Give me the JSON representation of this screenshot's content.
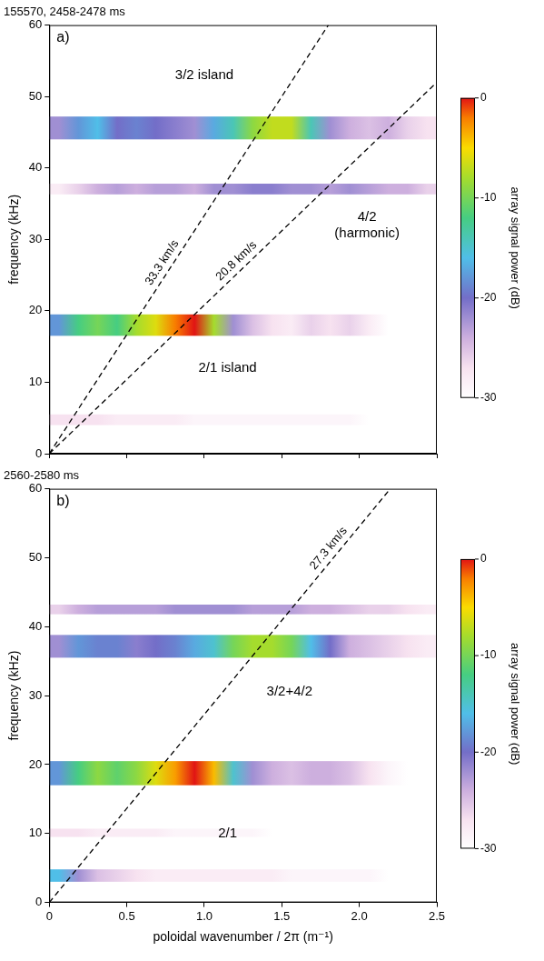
{
  "chart_data": [
    {
      "type": "heatmap",
      "title": "155570, 2458-2478 ms",
      "panel_label": "a)",
      "y_label": "frequency (kHz)",
      "xlim": [
        0,
        2.5
      ],
      "ylim": [
        0,
        60
      ],
      "xticks": [
        0,
        0.5,
        {
          "value": 1,
          "label": "1.0"
        },
        1.5,
        {
          "value": 2,
          "label": "2.0"
        },
        2.5
      ],
      "yticks": [
        0,
        10,
        20,
        30,
        40,
        50,
        60
      ],
      "tick_labels": "y",
      "grid": false,
      "x_edges": [
        0,
        0.125,
        0.25,
        0.375,
        0.5,
        0.625,
        0.75,
        0.875,
        1,
        1.125,
        1.25,
        1.375,
        1.5,
        1.625,
        1.75,
        1.875,
        2,
        2.125,
        2.25,
        2.375,
        2.5
      ],
      "bands": [
        {
          "ylim": [
            16.5,
            19.5
          ],
          "power": [
            -18,
            -12,
            -10,
            -12,
            -8,
            -6,
            -2,
            0,
            -8,
            -22,
            -25,
            -27,
            -28,
            -26,
            -27,
            -26,
            -28,
            -30,
            -30,
            -30
          ]
        },
        {
          "ylim": [
            44,
            47.2
          ],
          "power": [
            -22,
            -18,
            -16,
            -20,
            -19,
            -20,
            -21,
            -22,
            -17,
            -14,
            -9,
            -7,
            -7,
            -14,
            -22,
            -24,
            -25,
            -24,
            -26,
            -27
          ]
        },
        {
          "ylim": [
            36.3,
            37.8
          ],
          "power": [
            -28,
            -26,
            -24,
            -23,
            -24,
            -23,
            -23,
            -24,
            -22,
            -22,
            -21,
            -21,
            -22,
            -22,
            -23,
            -22,
            -23,
            -24,
            -24,
            -26
          ]
        },
        {
          "ylim": [
            4,
            5.5
          ],
          "power": [
            -27,
            -27,
            -27,
            -28,
            -28,
            -28,
            -28,
            -29,
            -29,
            -29,
            -29,
            -29,
            -29,
            -29,
            -29,
            -29,
            -30,
            -30,
            -30,
            -30
          ]
        }
      ],
      "colorbar": {
        "label": "array signal power (dB)",
        "range": [
          -30,
          0
        ],
        "ticks": [
          0,
          -10,
          -20,
          -30
        ]
      },
      "lines": [
        {
          "label": "33.3 km/s",
          "x": [
            0,
            1.8
          ],
          "y": [
            0,
            60
          ],
          "label_at": 0.78,
          "line_style": "dashed"
        },
        {
          "label": "20.8 km/s",
          "x": [
            0,
            2.5
          ],
          "y": [
            0,
            52
          ],
          "label_at": 1.25,
          "line_style": "dashed"
        }
      ],
      "annotations": [
        {
          "text": [
            "3/2 island"
          ],
          "x": 1.0,
          "y": 53
        },
        {
          "text": [
            "4/2",
            "(harmonic)"
          ],
          "x": 2.05,
          "y": 32
        },
        {
          "text": [
            "2/1 island"
          ],
          "x": 1.15,
          "y": 12
        }
      ]
    },
    {
      "type": "heatmap",
      "title": "2560-2580 ms",
      "panel_label": "b)",
      "x_label": "poloidal wavenumber / 2π (m⁻¹)",
      "y_label": "frequency (kHz)",
      "xlim": [
        0,
        2.5
      ],
      "ylim": [
        0,
        60
      ],
      "xticks": [
        0,
        0.5,
        {
          "value": 1,
          "label": "1.0"
        },
        1.5,
        {
          "value": 2,
          "label": "2.0"
        },
        2.5
      ],
      "yticks": [
        0,
        10,
        20,
        30,
        40,
        50,
        60
      ],
      "grid": false,
      "x_edges": [
        0,
        0.125,
        0.25,
        0.375,
        0.5,
        0.625,
        0.75,
        0.875,
        1,
        1.125,
        1.25,
        1.375,
        1.5,
        1.625,
        1.75,
        1.875,
        2,
        2.125,
        2.25,
        2.375,
        2.5
      ],
      "bands": [
        {
          "ylim": [
            17,
            20.5
          ],
          "power": [
            -18,
            -12,
            -9,
            -11,
            -9,
            -6,
            -3,
            0,
            -4,
            -15,
            -22,
            -24,
            -25,
            -24,
            -24,
            -25,
            -27,
            -29,
            -30,
            -30
          ]
        },
        {
          "ylim": [
            35.5,
            38.8
          ],
          "power": [
            -22,
            -18,
            -19,
            -19,
            -21,
            -20,
            -19,
            -17,
            -15,
            -10,
            -8,
            -8,
            -10,
            -16,
            -20,
            -24,
            -25,
            -26,
            -27,
            -28
          ]
        },
        {
          "ylim": [
            41.8,
            43.2
          ],
          "power": [
            -26,
            -24,
            -23,
            -23,
            -23,
            -23,
            -22,
            -22,
            -22,
            -22,
            -23,
            -23,
            -23,
            -24,
            -24,
            -25,
            -26,
            -26,
            -27,
            -28
          ]
        },
        {
          "ylim": [
            3,
            4.8
          ],
          "power": [
            -16,
            -22,
            -25,
            -26,
            -27,
            -28,
            -28,
            -28,
            -28,
            -28,
            -28,
            -28,
            -29,
            -29,
            -29,
            -29,
            -29,
            -30,
            -30,
            -30
          ]
        },
        {
          "ylim": [
            9.5,
            10.7
          ],
          "power": [
            -27,
            -27,
            -28,
            -28,
            -28,
            -28,
            -29,
            -29,
            -29,
            -29,
            -29,
            -30,
            -30,
            -30,
            -30,
            -30,
            -30,
            -30,
            -30,
            -30
          ]
        }
      ],
      "colorbar": {
        "label": "array signal power (dB)",
        "range": [
          -30,
          0
        ],
        "ticks": [
          0,
          -10,
          -20,
          -30
        ]
      },
      "lines": [
        {
          "label": "27.3 km/s",
          "x": [
            0,
            2.2
          ],
          "y": [
            0,
            60
          ],
          "label_at": 1.85,
          "line_style": "dashed"
        }
      ],
      "annotations": [
        {
          "text": [
            "3/2+4/2"
          ],
          "x": 1.55,
          "y": 30.5
        },
        {
          "text": [
            "2/1"
          ],
          "x": 1.15,
          "y": 10
        }
      ]
    }
  ]
}
